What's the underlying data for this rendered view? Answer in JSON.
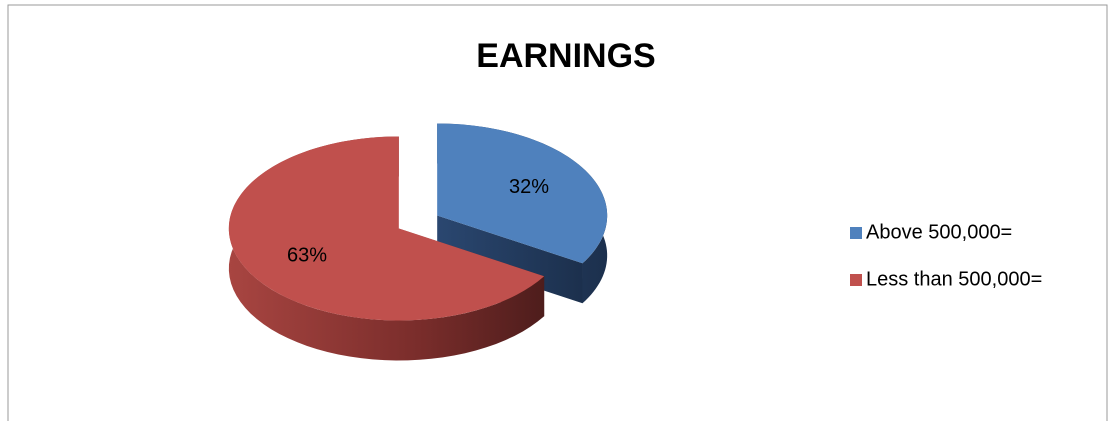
{
  "chart_data": {
    "type": "pie",
    "title": "EARNINGS",
    "categories": [
      "Above 500,000=",
      "Less than 500,000="
    ],
    "values": [
      32,
      63
    ],
    "value_labels": [
      "32%",
      "63%"
    ],
    "colors": [
      "#4f81bd",
      "#c0504d"
    ],
    "legend": "right",
    "exploded": true,
    "three_d": true
  }
}
